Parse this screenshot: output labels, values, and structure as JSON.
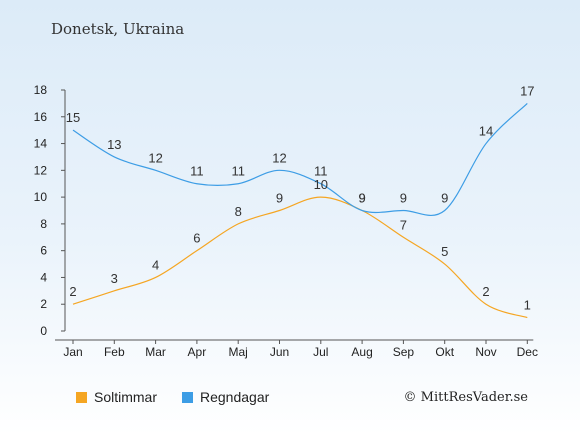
{
  "title": "Donetsk, Ukraina",
  "credit": "© MittResVader.se",
  "colors": {
    "sun": "#f5a623",
    "rain": "#3d9de5"
  },
  "chart_data": {
    "type": "line",
    "categories": [
      "Jan",
      "Feb",
      "Mar",
      "Apr",
      "Maj",
      "Jun",
      "Jul",
      "Aug",
      "Sep",
      "Okt",
      "Nov",
      "Dec"
    ],
    "series": [
      {
        "name": "Soltimmar",
        "color": "#f5a623",
        "values": [
          2,
          3,
          4,
          6,
          8,
          9,
          10,
          9,
          7,
          5,
          2,
          1
        ]
      },
      {
        "name": "Regndagar",
        "color": "#3d9de5",
        "values": [
          15,
          13,
          12,
          11,
          11,
          12,
          11,
          9,
          9,
          9,
          14,
          17
        ]
      }
    ],
    "y_ticks": [
      0,
      2,
      4,
      6,
      8,
      10,
      12,
      14,
      16,
      18
    ],
    "ylim": [
      0,
      18
    ],
    "grid": false,
    "legend": "bottom-left"
  }
}
